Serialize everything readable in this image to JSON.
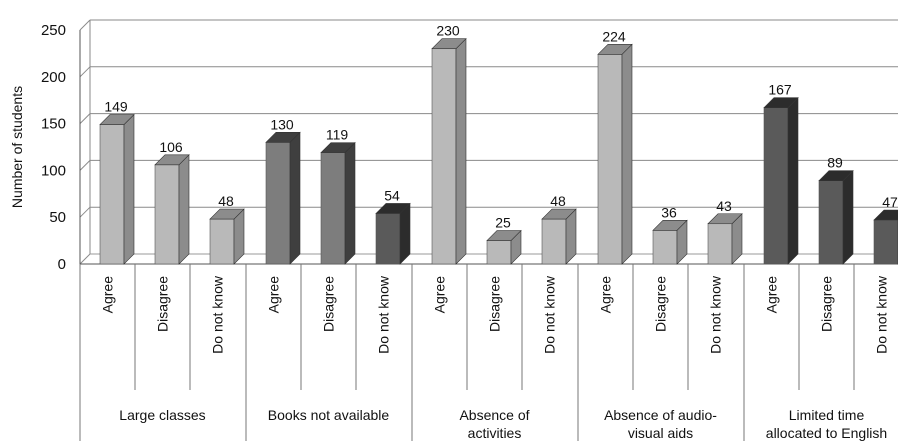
{
  "chart_data": {
    "type": "bar",
    "ylabel": "Number of students",
    "ylim": [
      0,
      250
    ],
    "yticks": [
      0,
      50,
      100,
      150,
      200,
      250
    ],
    "grid": true,
    "groups": [
      {
        "name": "Large classes",
        "lines": [
          "Large classes"
        ]
      },
      {
        "name": "Books not available",
        "lines": [
          "Books not available"
        ]
      },
      {
        "name": "Absence of activities",
        "lines": [
          "Absence of",
          "activities"
        ]
      },
      {
        "name": "Absence of audio-visual aids",
        "lines": [
          "Absence of audio-",
          "visual aids"
        ]
      },
      {
        "name": "Limited time allocated to English",
        "lines": [
          "Limited time",
          "allocated to English"
        ]
      }
    ],
    "categories": [
      "Agree",
      "Disagree",
      "Do not know"
    ],
    "values": [
      [
        149,
        106,
        48
      ],
      [
        130,
        119,
        54
      ],
      [
        230,
        25,
        48
      ],
      [
        224,
        36,
        43
      ],
      [
        167,
        89,
        47
      ]
    ],
    "colors": {
      "light": "#b9b9b9",
      "light_side": "#8c8c8c",
      "dark": "#7d7d7d",
      "dark_side": "#3f3f3f",
      "darkest": "#5a5a5a",
      "darkest_side": "#2c2c2c"
    },
    "shades": [
      [
        "light",
        "light",
        "light"
      ],
      [
        "dark",
        "dark",
        "darkest"
      ],
      [
        "light",
        "light",
        "light"
      ],
      [
        "light",
        "light",
        "light"
      ],
      [
        "darkest",
        "darkest",
        "darkest"
      ]
    ]
  }
}
